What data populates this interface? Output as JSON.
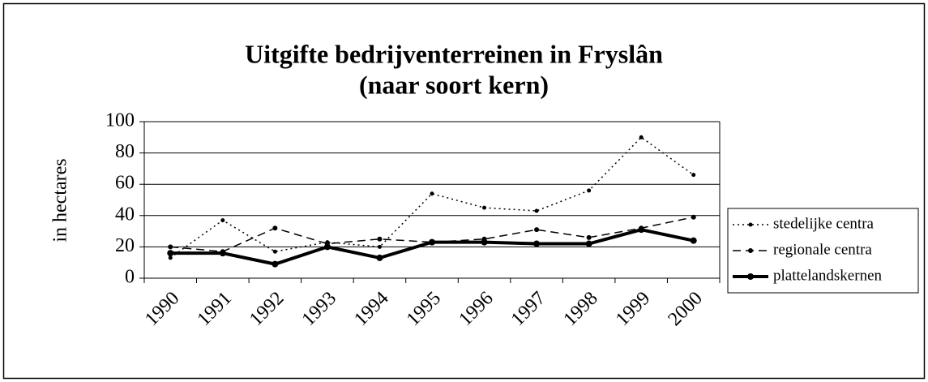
{
  "chart_data": {
    "type": "line",
    "title_lines": [
      "Uitgifte bedrijventerreinen in Fryslân",
      "(naar soort kern)"
    ],
    "y_label": "in hectares",
    "categories": [
      "1990",
      "1991",
      "1992",
      "1993",
      "1994",
      "1995",
      "1996",
      "1997",
      "1998",
      "1999",
      "2000"
    ],
    "series": [
      {
        "name": "stedelijke centra",
        "color": "#000000",
        "line_style": "dotted",
        "values": [
          13,
          37,
          17,
          23,
          20,
          54,
          45,
          43,
          56,
          90,
          66
        ]
      },
      {
        "name": "regionale centra",
        "color": "#000000",
        "line_style": "dashed",
        "values": [
          20,
          17,
          32,
          22,
          25,
          23,
          25,
          31,
          26,
          32,
          39
        ]
      },
      {
        "name": "plattelandskernen",
        "color": "#000000",
        "line_style": "thick",
        "values": [
          16,
          16,
          9,
          20,
          13,
          23,
          23,
          22,
          22,
          31,
          24
        ]
      }
    ],
    "ylim": [
      0,
      100
    ],
    "yticks": [
      0,
      20,
      40,
      60,
      80,
      100
    ],
    "grid": true,
    "legend": "right"
  }
}
